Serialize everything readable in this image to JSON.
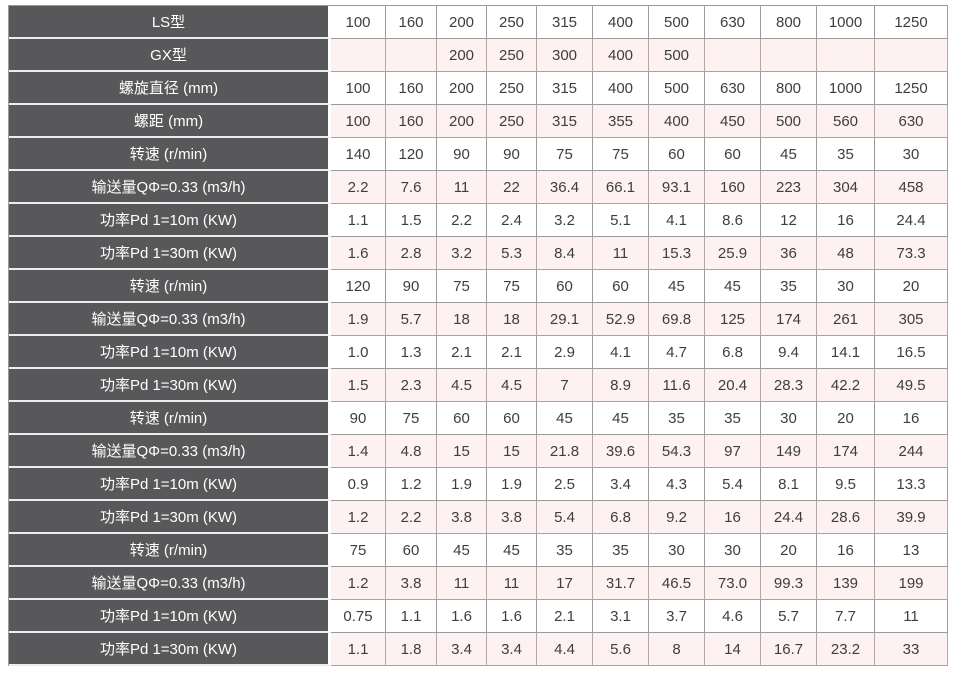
{
  "table": {
    "description": "Screw conveyor specification table (LS / GX models)",
    "rows": [
      {
        "label": "LS型",
        "values": [
          "100",
          "160",
          "200",
          "250",
          "315",
          "400",
          "500",
          "630",
          "800",
          "1000",
          "1250"
        ]
      },
      {
        "label": "GX型",
        "values": [
          "",
          "",
          "200",
          "250",
          "300",
          "400",
          "500",
          "",
          "",
          "",
          ""
        ]
      },
      {
        "label": "螺旋直径 (mm)",
        "values": [
          "100",
          "160",
          "200",
          "250",
          "315",
          "400",
          "500",
          "630",
          "800",
          "1000",
          "1250"
        ]
      },
      {
        "label": "螺距 (mm)",
        "values": [
          "100",
          "160",
          "200",
          "250",
          "315",
          "355",
          "400",
          "450",
          "500",
          "560",
          "630"
        ]
      },
      {
        "label": "转速 (r/min)",
        "values": [
          "140",
          "120",
          "90",
          "90",
          "75",
          "75",
          "60",
          "60",
          "45",
          "35",
          "30"
        ]
      },
      {
        "label": "输送量QΦ=0.33 (m3/h)",
        "values": [
          "2.2",
          "7.6",
          "11",
          "22",
          "36.4",
          "66.1",
          "93.1",
          "160",
          "223",
          "304",
          "458"
        ]
      },
      {
        "label": "功率Pd 1=10m (KW)",
        "values": [
          "1.1",
          "1.5",
          "2.2",
          "2.4",
          "3.2",
          "5.1",
          "4.1",
          "8.6",
          "12",
          "16",
          "24.4"
        ]
      },
      {
        "label": "功率Pd 1=30m (KW)",
        "values": [
          "1.6",
          "2.8",
          "3.2",
          "5.3",
          "8.4",
          "11",
          "15.3",
          "25.9",
          "36",
          "48",
          "73.3"
        ]
      },
      {
        "label": "转速 (r/min)",
        "values": [
          "120",
          "90",
          "75",
          "75",
          "60",
          "60",
          "45",
          "45",
          "35",
          "30",
          "20"
        ]
      },
      {
        "label": "输送量QΦ=0.33 (m3/h)",
        "values": [
          "1.9",
          "5.7",
          "18",
          "18",
          "29.1",
          "52.9",
          "69.8",
          "125",
          "174",
          "261",
          "305"
        ]
      },
      {
        "label": "功率Pd 1=10m (KW)",
        "values": [
          "1.0",
          "1.3",
          "2.1",
          "2.1",
          "2.9",
          "4.1",
          "4.7",
          "6.8",
          "9.4",
          "14.1",
          "16.5"
        ]
      },
      {
        "label": "功率Pd 1=30m (KW)",
        "values": [
          "1.5",
          "2.3",
          "4.5",
          "4.5",
          "7",
          "8.9",
          "11.6",
          "20.4",
          "28.3",
          "42.2",
          "49.5"
        ]
      },
      {
        "label": "转速 (r/min)",
        "values": [
          "90",
          "75",
          "60",
          "60",
          "45",
          "45",
          "35",
          "35",
          "30",
          "20",
          "16"
        ]
      },
      {
        "label": "输送量QΦ=0.33 (m3/h)",
        "values": [
          "1.4",
          "4.8",
          "15",
          "15",
          "21.8",
          "39.6",
          "54.3",
          "97",
          "149",
          "174",
          "244"
        ]
      },
      {
        "label": "功率Pd 1=10m (KW)",
        "values": [
          "0.9",
          "1.2",
          "1.9",
          "1.9",
          "2.5",
          "3.4",
          "4.3",
          "5.4",
          "8.1",
          "9.5",
          "13.3"
        ]
      },
      {
        "label": "功率Pd 1=30m (KW)",
        "values": [
          "1.2",
          "2.2",
          "3.8",
          "3.8",
          "5.4",
          "6.8",
          "9.2",
          "16",
          "24.4",
          "28.6",
          "39.9"
        ]
      },
      {
        "label": "转速 (r/min)",
        "values": [
          "75",
          "60",
          "45",
          "45",
          "35",
          "35",
          "30",
          "30",
          "20",
          "16",
          "13"
        ]
      },
      {
        "label": "输送量QΦ=0.33 (m3/h)",
        "values": [
          "1.2",
          "3.8",
          "11",
          "11",
          "17",
          "31.7",
          "46.5",
          "73.0",
          "99.3",
          "139",
          "199"
        ]
      },
      {
        "label": "功率Pd 1=10m (KW)",
        "values": [
          "0.75",
          "1.1",
          "1.6",
          "1.6",
          "2.1",
          "3.1",
          "3.7",
          "4.6",
          "5.7",
          "7.7",
          "11"
        ]
      },
      {
        "label": "功率Pd 1=30m (KW)",
        "values": [
          "1.1",
          "1.8",
          "3.4",
          "3.4",
          "4.4",
          "5.6",
          "8",
          "14",
          "16.7",
          "23.2",
          "33"
        ]
      }
    ]
  },
  "colors": {
    "label_background": "#58585a",
    "label_text": "#ffffff",
    "row_background": "#ffffff",
    "row_alt_background": "#fdf2f1",
    "cell_border": "#9b9b9b",
    "label_separator": "#ededed",
    "data_text": "#3e3e3e"
  }
}
